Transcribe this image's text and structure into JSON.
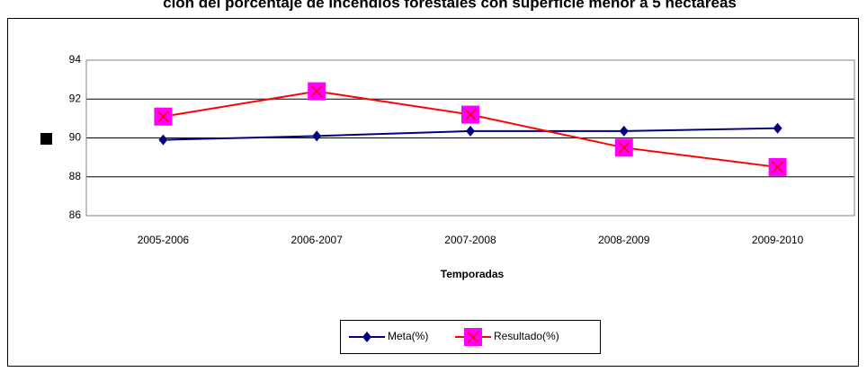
{
  "chart_data": {
    "type": "line",
    "title": "ción del porcentaje de incendios forestales con superficie menor a 5 hectáreas",
    "x_label": "Temporadas",
    "categories": [
      "2005-2006",
      "2006-2007",
      "2007-2008",
      "2008-2009",
      "2009-2010"
    ],
    "series": [
      {
        "name": "Meta(%)",
        "color": "#000080",
        "marker": "diamond",
        "values": [
          89.9,
          90.1,
          90.35,
          90.35,
          90.5
        ]
      },
      {
        "name": "Resultado(%)",
        "color": "#ff0000",
        "marker": "square",
        "values": [
          91.1,
          92.4,
          91.2,
          89.5,
          88.5
        ]
      }
    ],
    "ylim": [
      86,
      94
    ],
    "yticks": [
      86,
      88,
      90,
      92,
      94
    ],
    "grid": true,
    "legend": "bottom"
  }
}
